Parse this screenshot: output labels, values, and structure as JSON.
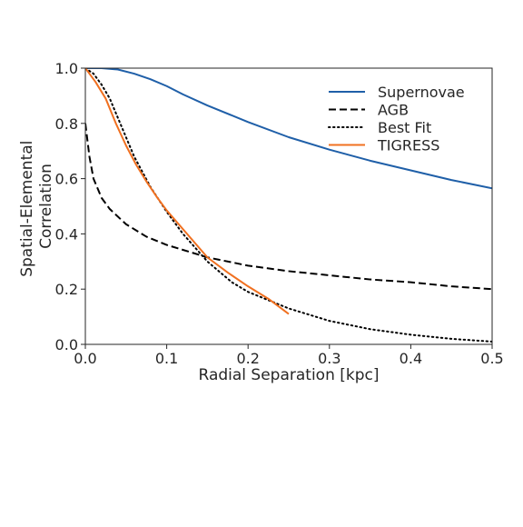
{
  "chart_data": {
    "type": "line",
    "xlabel": "Radial Separation [kpc]",
    "ylabel": [
      "Spatial-Elemental",
      "Correlation"
    ],
    "xlim": [
      0.0,
      0.5
    ],
    "ylim": [
      0.0,
      1.0
    ],
    "xticks": [
      0.0,
      0.1,
      0.2,
      0.3,
      0.4,
      0.5
    ],
    "xtick_labels": [
      "0.0",
      "0.1",
      "0.2",
      "0.3",
      "0.4",
      "0.5"
    ],
    "yticks": [
      0.0,
      0.2,
      0.4,
      0.6,
      0.8,
      1.0
    ],
    "ytick_labels": [
      "0.0",
      "0.2",
      "0.4",
      "0.6",
      "0.8",
      "1.0"
    ],
    "grid": false,
    "legend_position": "top-right",
    "series": [
      {
        "name": "Supernovae",
        "color": "#1f5fa8",
        "style": "solid",
        "x": [
          0.0,
          0.02,
          0.04,
          0.06,
          0.08,
          0.1,
          0.12,
          0.15,
          0.2,
          0.25,
          0.3,
          0.35,
          0.4,
          0.45,
          0.5
        ],
        "y": [
          1.0,
          1.0,
          0.995,
          0.98,
          0.96,
          0.935,
          0.905,
          0.865,
          0.805,
          0.75,
          0.705,
          0.665,
          0.63,
          0.595,
          0.565
        ]
      },
      {
        "name": "AGB",
        "color": "#000000",
        "style": "dashed",
        "x": [
          0.0,
          0.005,
          0.01,
          0.02,
          0.03,
          0.05,
          0.075,
          0.1,
          0.15,
          0.2,
          0.25,
          0.3,
          0.35,
          0.4,
          0.45,
          0.5
        ],
        "y": [
          0.8,
          0.68,
          0.6,
          0.53,
          0.49,
          0.435,
          0.39,
          0.36,
          0.315,
          0.285,
          0.265,
          0.25,
          0.235,
          0.225,
          0.21,
          0.2
        ]
      },
      {
        "name": "Best Fit",
        "color": "#000000",
        "style": "dotted",
        "x": [
          0.0,
          0.01,
          0.02,
          0.03,
          0.04,
          0.05,
          0.06,
          0.08,
          0.1,
          0.12,
          0.15,
          0.18,
          0.2,
          0.25,
          0.3,
          0.35,
          0.4,
          0.45,
          0.5
        ],
        "y": [
          1.0,
          0.98,
          0.94,
          0.89,
          0.82,
          0.75,
          0.68,
          0.57,
          0.48,
          0.4,
          0.3,
          0.225,
          0.19,
          0.13,
          0.085,
          0.055,
          0.035,
          0.02,
          0.01
        ]
      },
      {
        "name": "TIGRESS",
        "color": "#f07020",
        "style": "solid",
        "x": [
          0.0,
          0.0125,
          0.025,
          0.0375,
          0.05,
          0.0625,
          0.075,
          0.0875,
          0.1,
          0.125,
          0.15,
          0.175,
          0.2,
          0.225,
          0.25
        ],
        "y": [
          1.0,
          0.95,
          0.89,
          0.8,
          0.72,
          0.65,
          0.59,
          0.535,
          0.485,
          0.4,
          0.315,
          0.26,
          0.21,
          0.165,
          0.11
        ]
      }
    ]
  }
}
